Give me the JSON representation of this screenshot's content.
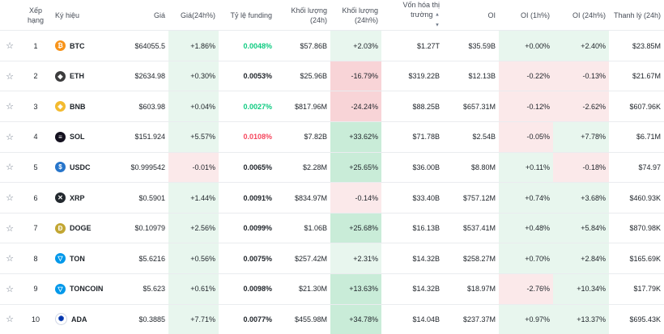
{
  "headers": {
    "rank": "Xếp hạng",
    "symbol": "Ký hiệu",
    "price": "Giá",
    "change": "Giá(24h%)",
    "funding": "Tỷ lệ funding",
    "volume": "Khối lượng (24h)",
    "volume_change": "Khối lượng (24h%)",
    "mcap": "Vốn hóa thị trường",
    "sort_icon": "sort-icon",
    "oi": "OI",
    "oi1h": "OI (1h%)",
    "oi24h": "OI (24h%)",
    "liq": "Thanh lý (24h)"
  },
  "rows": [
    {
      "rank": "1",
      "symbol": "BTC",
      "icon": "btc-icon",
      "color": "#f7931a",
      "glyph": "₿",
      "price": "$64055.5",
      "change": "+1.86%",
      "funding": "0.0048%",
      "fcolor": "green",
      "volume": "$57.86B",
      "vchg": "+2.03%",
      "mcap": "$1.27T",
      "oi": "$35.59B",
      "oi1h": "+0.00%",
      "oi24h": "+2.40%",
      "liq": "$23.85M"
    },
    {
      "rank": "2",
      "symbol": "ETH",
      "icon": "eth-icon",
      "color": "#3c3c3d",
      "glyph": "◆",
      "price": "$2634.98",
      "change": "+0.30%",
      "funding": "0.0053%",
      "fcolor": "normal",
      "volume": "$25.96B",
      "vchg": "-16.79%",
      "mcap": "$319.22B",
      "oi": "$12.13B",
      "oi1h": "-0.22%",
      "oi24h": "-0.13%",
      "liq": "$21.67M"
    },
    {
      "rank": "3",
      "symbol": "BNB",
      "icon": "bnb-icon",
      "color": "#f3ba2f",
      "glyph": "◈",
      "price": "$603.98",
      "change": "+0.04%",
      "funding": "0.0027%",
      "fcolor": "green",
      "volume": "$817.96M",
      "vchg": "-24.24%",
      "mcap": "$88.25B",
      "oi": "$657.31M",
      "oi1h": "-0.12%",
      "oi24h": "-2.62%",
      "liq": "$607.96K"
    },
    {
      "rank": "4",
      "symbol": "SOL",
      "icon": "sol-icon",
      "color": "#14111f",
      "glyph": "≡",
      "price": "$151.924",
      "change": "+5.57%",
      "funding": "0.0108%",
      "fcolor": "red",
      "volume": "$7.82B",
      "vchg": "+33.62%",
      "mcap": "$71.78B",
      "oi": "$2.54B",
      "oi1h": "-0.05%",
      "oi24h": "+7.78%",
      "liq": "$6.71M"
    },
    {
      "rank": "5",
      "symbol": "USDC",
      "icon": "usdc-icon",
      "color": "#2775ca",
      "glyph": "$",
      "price": "$0.999542",
      "change": "-0.01%",
      "funding": "0.0065%",
      "fcolor": "normal",
      "volume": "$2.28M",
      "vchg": "+25.65%",
      "mcap": "$36.00B",
      "oi": "$8.80M",
      "oi1h": "+0.11%",
      "oi24h": "-0.18%",
      "liq": "$74.97"
    },
    {
      "rank": "6",
      "symbol": "XRP",
      "icon": "xrp-icon",
      "color": "#23292f",
      "glyph": "✕",
      "price": "$0.5901",
      "change": "+1.44%",
      "funding": "0.0091%",
      "fcolor": "normal",
      "volume": "$834.97M",
      "vchg": "-0.14%",
      "mcap": "$33.40B",
      "oi": "$757.12M",
      "oi1h": "+0.74%",
      "oi24h": "+3.68%",
      "liq": "$460.93K"
    },
    {
      "rank": "7",
      "symbol": "DOGE",
      "icon": "doge-icon",
      "color": "#c2a633",
      "glyph": "Ð",
      "price": "$0.10979",
      "change": "+2.56%",
      "funding": "0.0099%",
      "fcolor": "normal",
      "volume": "$1.06B",
      "vchg": "+25.68%",
      "mcap": "$16.13B",
      "oi": "$537.41M",
      "oi1h": "+0.48%",
      "oi24h": "+5.84%",
      "liq": "$870.98K"
    },
    {
      "rank": "8",
      "symbol": "TON",
      "icon": "ton-icon",
      "color": "#0098ea",
      "glyph": "▽",
      "price": "$5.6216",
      "change": "+0.56%",
      "funding": "0.0075%",
      "fcolor": "normal",
      "volume": "$257.42M",
      "vchg": "+2.31%",
      "mcap": "$14.32B",
      "oi": "$258.27M",
      "oi1h": "+0.70%",
      "oi24h": "+2.84%",
      "liq": "$165.69K"
    },
    {
      "rank": "9",
      "symbol": "TONCOIN",
      "icon": "toncoin-icon",
      "color": "#0098ea",
      "glyph": "▽",
      "price": "$5.623",
      "change": "+0.61%",
      "funding": "0.0098%",
      "fcolor": "normal",
      "volume": "$21.30M",
      "vchg": "+13.63%",
      "mcap": "$14.32B",
      "oi": "$18.97M",
      "oi1h": "-2.76%",
      "oi24h": "+10.34%",
      "liq": "$17.79K"
    },
    {
      "rank": "10",
      "symbol": "ADA",
      "icon": "ada-icon",
      "color": "#ffffff",
      "glyph": "✺",
      "price": "$0.3885",
      "change": "+7.71%",
      "funding": "0.0077%",
      "fcolor": "normal",
      "volume": "$455.98M",
      "vchg": "+34.78%",
      "mcap": "$14.04B",
      "oi": "$237.37M",
      "oi1h": "+0.97%",
      "oi24h": "+13.37%",
      "liq": "$695.43K"
    }
  ]
}
